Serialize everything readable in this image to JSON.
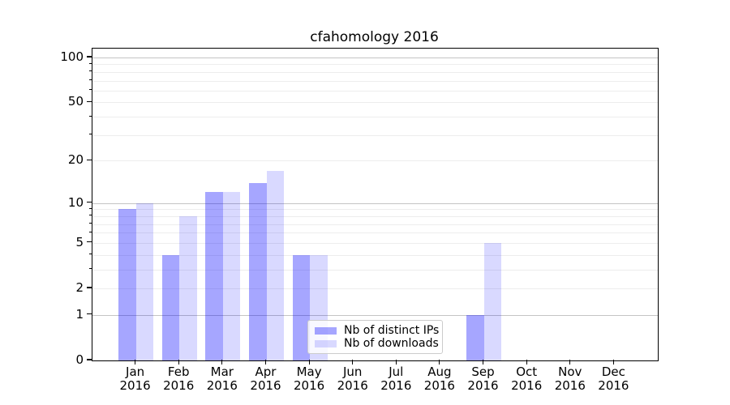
{
  "chart_data": {
    "type": "bar",
    "title": "cfahomology 2016",
    "categories": [
      "Jan",
      "Feb",
      "Mar",
      "Apr",
      "May",
      "Jun",
      "Jul",
      "Aug",
      "Sep",
      "Oct",
      "Nov",
      "Dec"
    ],
    "year": "2016",
    "series": [
      {
        "name": "Nb of distinct IPs",
        "color": "rgba(0,0,255,0.35)",
        "values": [
          9,
          4,
          12,
          14,
          4,
          0,
          0,
          0,
          1,
          0,
          0,
          0
        ]
      },
      {
        "name": "Nb of downloads",
        "color": "rgba(0,0,255,0.15)",
        "values": [
          10,
          8,
          12,
          17,
          4,
          0,
          0,
          0,
          5,
          0,
          0,
          0
        ]
      }
    ],
    "yscale": "log10(value+1)",
    "ylim": [
      0,
      114
    ],
    "ytick_labels": [
      0,
      1,
      2,
      5,
      10,
      20,
      50,
      100
    ],
    "grid": {
      "major_values": [
        1,
        10,
        100
      ],
      "minor_values": [
        2,
        3,
        4,
        5,
        6,
        7,
        8,
        9,
        20,
        30,
        40,
        50,
        60,
        70,
        80,
        90
      ]
    },
    "legend_position": "lower center"
  },
  "colors": {
    "major_grid": "#c4c4c4",
    "minor_grid": "#ededed",
    "spine": "#000000",
    "background": "#ffffff"
  }
}
